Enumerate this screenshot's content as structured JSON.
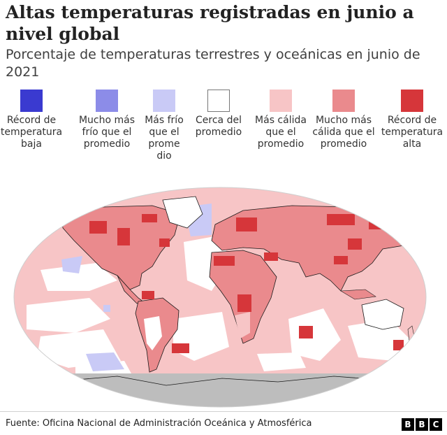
{
  "title": "Altas temperaturas registradas en junio a nivel global",
  "subtitle": "Porcentaje de temperaturas terrestres y oceánicas en junio de 2021",
  "legend": [
    {
      "label": "Récord de temperatura baja",
      "color": "#3a3ad0"
    },
    {
      "label": "Mucho más frío que el promedio",
      "color": "#8c8ce8"
    },
    {
      "label": "Más frío que el prome dio",
      "color": "#c9caf6"
    },
    {
      "label": "Cerca del promedio",
      "color": "#ffffff"
    },
    {
      "label": "Más cálida que el promedio",
      "color": "#f7c5c6"
    },
    {
      "label": "Mucho más cálida que el promedio",
      "color": "#ea8a8d"
    },
    {
      "label": "Récord de temperatura alta",
      "color": "#d6363a"
    }
  ],
  "source": "Fuente: Oficina Nacional de Administración Oceánica y Atmosférica",
  "brand": [
    "B",
    "B",
    "C"
  ],
  "colors": {
    "ocean_warm": "#f7c5c6",
    "land_warm": "#ea8a8d",
    "record_high": "#d6363a",
    "cold": "#c9caf6",
    "no_data": "#bdbdbd",
    "outline": "#1a1a1a"
  }
}
